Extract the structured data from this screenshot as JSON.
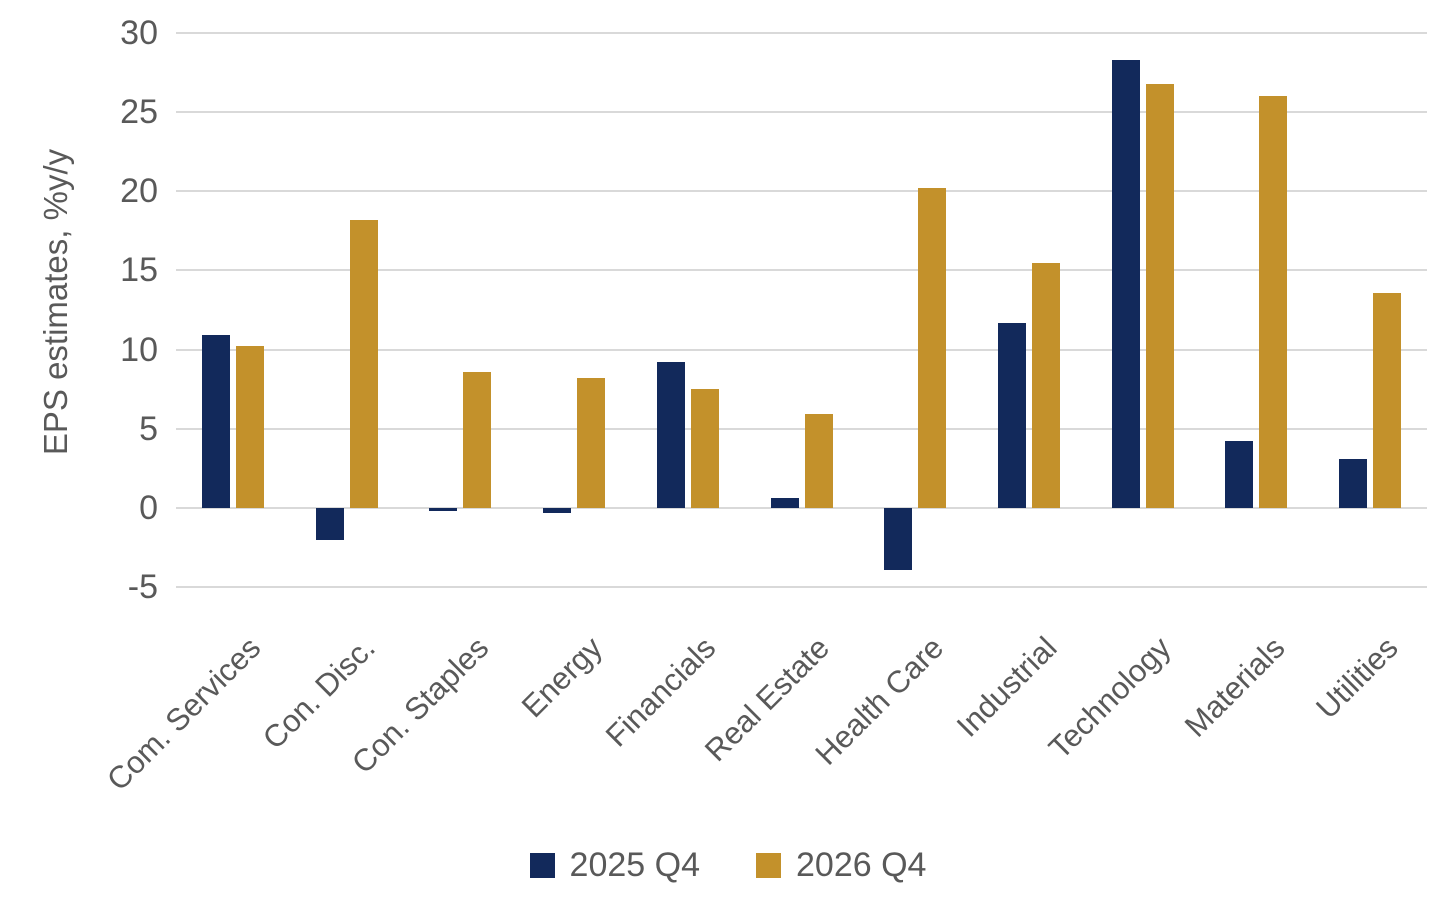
{
  "chart_data": {
    "type": "bar",
    "title": "",
    "ylabel": "EPS estimates, %y/y",
    "xlabel": "",
    "ylim": [
      -5,
      30
    ],
    "yticks": [
      30,
      25,
      20,
      15,
      10,
      5,
      0,
      -5
    ],
    "grid": "horizontal",
    "legend_position": "bottom",
    "categories": [
      "Com. Services",
      "Con. Disc.",
      "Con. Staples",
      "Energy",
      "Financials",
      "Real Estate",
      "Health Care",
      "Industrial",
      "Technology",
      "Materials",
      "Utilities"
    ],
    "series": [
      {
        "name": "2025 Q4",
        "color": "#12295B",
        "values": [
          10.9,
          -2.0,
          -0.2,
          -0.3,
          9.2,
          0.6,
          -3.9,
          11.7,
          28.3,
          4.2,
          3.1
        ]
      },
      {
        "name": "2026 Q4",
        "color": "#C3912B",
        "values": [
          10.2,
          18.2,
          8.6,
          8.2,
          7.5,
          5.9,
          20.2,
          15.5,
          26.8,
          26.0,
          13.6
        ]
      }
    ]
  },
  "colors": {
    "grid": "#D9D9D9",
    "text": "#595959",
    "background": "#FFFFFF"
  }
}
